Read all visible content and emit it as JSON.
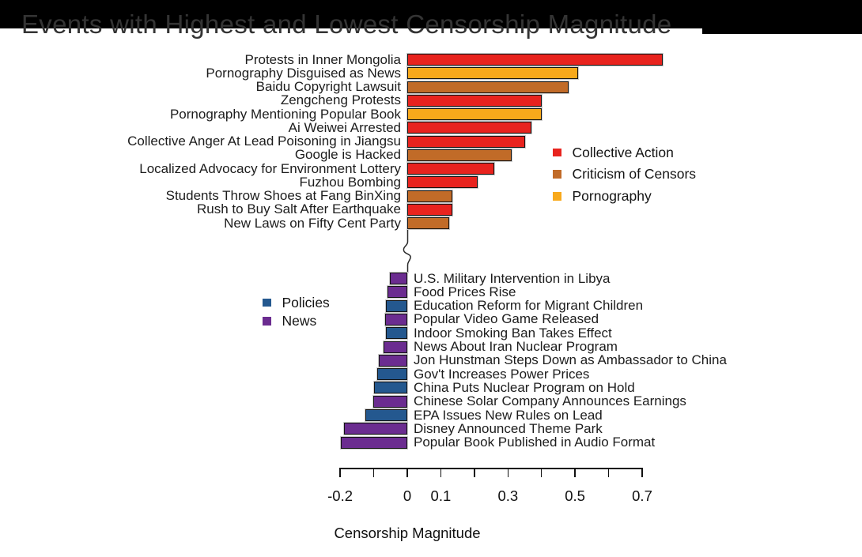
{
  "chart_data": {
    "type": "bar",
    "orientation": "horizontal",
    "title": "Events with Highest and Lowest Censorship Magnitude",
    "xlabel": "Censorship Magnitude",
    "x_axis": {
      "min": -0.2,
      "max": 0.7,
      "ticks": [
        -0.2,
        -0.1,
        0,
        0.1,
        0.2,
        0.3,
        0.4,
        0.5,
        0.6,
        0.7
      ],
      "tick_labels": [
        {
          "value": -0.2,
          "label": "-0.2"
        },
        {
          "value": 0,
          "label": "0"
        },
        {
          "value": 0.1,
          "label": "0.1"
        },
        {
          "value": 0.3,
          "label": "0.3"
        },
        {
          "value": 0.5,
          "label": "0.5"
        },
        {
          "value": 0.7,
          "label": "0.7"
        }
      ],
      "axis_break_between_groups": true
    },
    "legend_top_categories": {
      "position": "right of top bars",
      "items": [
        {
          "label": "Collective Action",
          "color": "#E8231E"
        },
        {
          "label": "Criticism of Censors",
          "color": "#C16B28"
        },
        {
          "label": "Pornography",
          "color": "#F8A91B"
        }
      ]
    },
    "legend_bottom_categories": {
      "position": "left of bottom bars",
      "items": [
        {
          "label": "Policies",
          "color": "#24588F"
        },
        {
          "label": "News",
          "color": "#6B2C90"
        }
      ]
    },
    "top_group": [
      {
        "label": "Protests in Inner Mongolia",
        "category": "Collective Action",
        "value": 0.76
      },
      {
        "label": "Pornography Disguised as News",
        "category": "Pornography",
        "value": 0.51
      },
      {
        "label": "Baidu Copyright Lawsuit",
        "category": "Criticism of Censors",
        "value": 0.48
      },
      {
        "label": "Zengcheng Protests",
        "category": "Collective Action",
        "value": 0.4
      },
      {
        "label": "Pornography Mentioning Popular Book",
        "category": "Pornography",
        "value": 0.4
      },
      {
        "label": "Ai Weiwei Arrested",
        "category": "Collective Action",
        "value": 0.37
      },
      {
        "label": "Collective Anger At Lead Poisoning in Jiangsu",
        "category": "Collective Action",
        "value": 0.35
      },
      {
        "label": "Google is Hacked",
        "category": "Criticism of Censors",
        "value": 0.31
      },
      {
        "label": "Localized Advocacy for Environment Lottery",
        "category": "Collective Action",
        "value": 0.26
      },
      {
        "label": "Fuzhou Bombing",
        "category": "Collective Action",
        "value": 0.21
      },
      {
        "label": "Students Throw Shoes at Fang BinXing",
        "category": "Criticism of Censors",
        "value": 0.134
      },
      {
        "label": "Rush to Buy Salt After Earthquake",
        "category": "Collective Action",
        "value": 0.134
      },
      {
        "label": "New Laws on Fifty Cent Party",
        "category": "Criticism of Censors",
        "value": 0.125
      }
    ],
    "bottom_group": [
      {
        "label": "U.S. Military Intervention in Libya",
        "category": "News",
        "value": -0.053
      },
      {
        "label": "Food Prices Rise",
        "category": "News",
        "value": -0.059
      },
      {
        "label": "Education Reform for Migrant Children",
        "category": "Policies",
        "value": -0.064
      },
      {
        "label": "Popular Video Game Released",
        "category": "News",
        "value": -0.065
      },
      {
        "label": "Indoor Smoking Ban Takes Effect",
        "category": "Policies",
        "value": -0.064
      },
      {
        "label": "News About Iran Nuclear Program",
        "category": "News",
        "value": -0.071
      },
      {
        "label": "Jon Hunstman Steps Down as Ambassador to China",
        "category": "News",
        "value": -0.086
      },
      {
        "label": "Gov't Increases Power Prices",
        "category": "Policies",
        "value": -0.089
      },
      {
        "label": "China Puts Nuclear Program on Hold",
        "category": "Policies",
        "value": -0.099
      },
      {
        "label": "Chinese Solar Company Announces Earnings",
        "category": "News",
        "value": -0.102
      },
      {
        "label": "EPA Issues New Rules on Lead",
        "category": "Policies",
        "value": -0.126
      },
      {
        "label": "Disney Announced Theme Park",
        "category": "News",
        "value": -0.189
      },
      {
        "label": "Popular Book Published in Audio Format",
        "category": "News",
        "value": -0.198
      }
    ]
  }
}
